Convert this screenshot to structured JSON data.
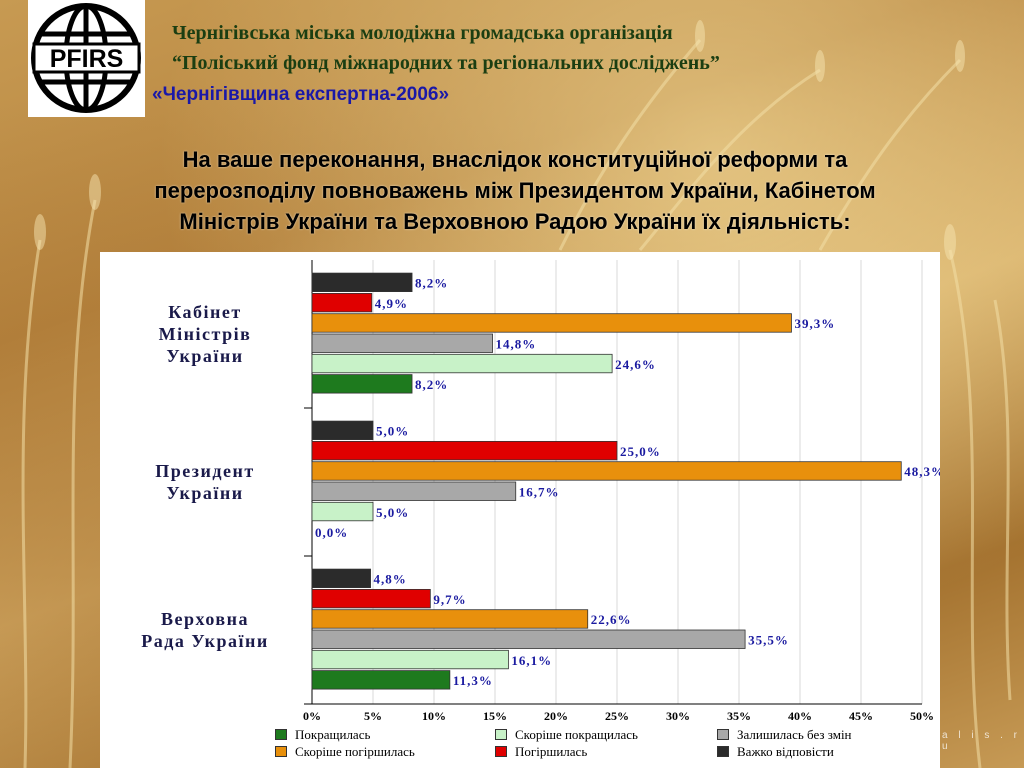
{
  "header": {
    "org_line1": "Чернігівська міська молодіжна громадська організація",
    "org_line2": "“Поліський фонд міжнародних та регіональних досліджень”",
    "project": "«Чернігівщина експертна-2006»"
  },
  "logo": {
    "text": "PFIRS",
    "icon": "globe-icon"
  },
  "question": {
    "line1": "На ваше переконання, внаслідок конституційної реформи та",
    "line2": "перерозподілу повноважень між Президентом України, Кабінетом",
    "line3": "Міністрів України та Верховною Радою України їх діяльність:"
  },
  "chart_data": {
    "type": "bar",
    "orientation": "horizontal",
    "categories": [
      [
        "Кабінет",
        "Міністрів",
        "України"
      ],
      [
        "Президент",
        "України"
      ],
      [
        "Верховна",
        "Рада України"
      ]
    ],
    "series": [
      {
        "name": "Покращилась",
        "color": "#1e7a1e",
        "values": [
          8.2,
          0.0,
          11.3
        ],
        "labels": [
          "8,2%",
          "0,0%",
          "11,3%"
        ]
      },
      {
        "name": "Скоріше покращилась",
        "color": "#c8f2c8",
        "values": [
          24.6,
          5.0,
          16.1
        ],
        "labels": [
          "24,6%",
          "5,0%",
          "16,1%"
        ]
      },
      {
        "name": "Залишилась без змін",
        "color": "#a8a8a8",
        "values": [
          14.8,
          16.7,
          35.5
        ],
        "labels": [
          "14,8%",
          "16,7%",
          "35,5%"
        ]
      },
      {
        "name": "Скоріше погіршилась",
        "color": "#e8900c",
        "values": [
          39.3,
          48.3,
          22.6
        ],
        "labels": [
          "39,3%",
          "48,3%",
          "22,6%"
        ]
      },
      {
        "name": "Погіршилась",
        "color": "#e00000",
        "values": [
          4.9,
          25.0,
          9.7
        ],
        "labels": [
          "4,9%",
          "25,0%",
          "9,7%"
        ]
      },
      {
        "name": "Важко відповісти",
        "color": "#2b2b2b",
        "values": [
          8.2,
          5.0,
          4.8
        ],
        "labels": [
          "8,2%",
          "5,0%",
          "4,8%"
        ]
      }
    ],
    "xlim": [
      0,
      50
    ],
    "xticks": [
      "0%",
      "5%",
      "10%",
      "15%",
      "20%",
      "25%",
      "30%",
      "35%",
      "40%",
      "45%",
      "50%"
    ],
    "grid": true,
    "legend_position": "bottom"
  },
  "watermark": "a l i s . r u"
}
